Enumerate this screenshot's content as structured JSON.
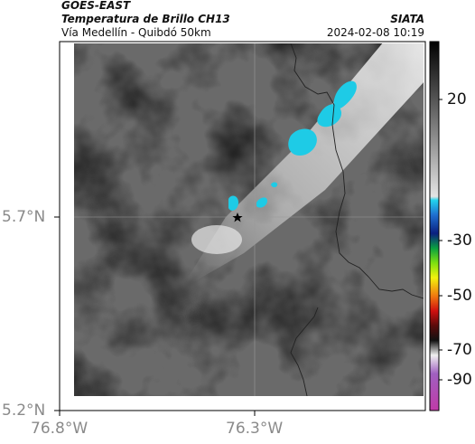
{
  "header": {
    "satellite": "GOES-EAST",
    "product": "Temperatura de Brillo CH13",
    "route": "Vía Medellín - Quibdó 50km",
    "agency": "SIATA",
    "timestamp": "2024-02-08 10:19"
  },
  "map": {
    "lat_ticks": [
      "5.7°N",
      "5.2°N"
    ],
    "lon_ticks": [
      "76.8°W",
      "76.3°W"
    ],
    "marker": "star-icon"
  },
  "colorbar": {
    "labels": [
      "20",
      "-30",
      "-50",
      "-70",
      "-90"
    ]
  },
  "colors": {
    "cold_cloud": "#1ecbe6",
    "border": "#222222"
  }
}
